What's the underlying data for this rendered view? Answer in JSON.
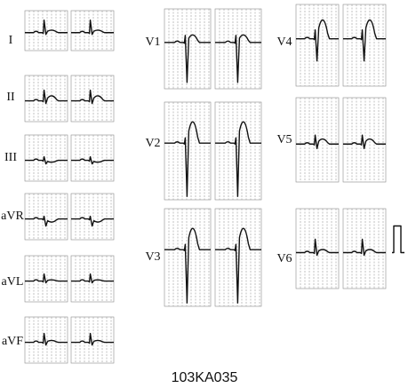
{
  "leads": [
    {
      "label": "I"
    },
    {
      "label": "II"
    },
    {
      "label": "III"
    },
    {
      "label": "aVR"
    },
    {
      "label": "aVL"
    },
    {
      "label": "aVF"
    },
    {
      "label": "V1"
    },
    {
      "label": "V2"
    },
    {
      "label": "V3"
    },
    {
      "label": "V4"
    },
    {
      "label": "V5"
    },
    {
      "label": "V6"
    }
  ],
  "caption": "103KA035"
}
